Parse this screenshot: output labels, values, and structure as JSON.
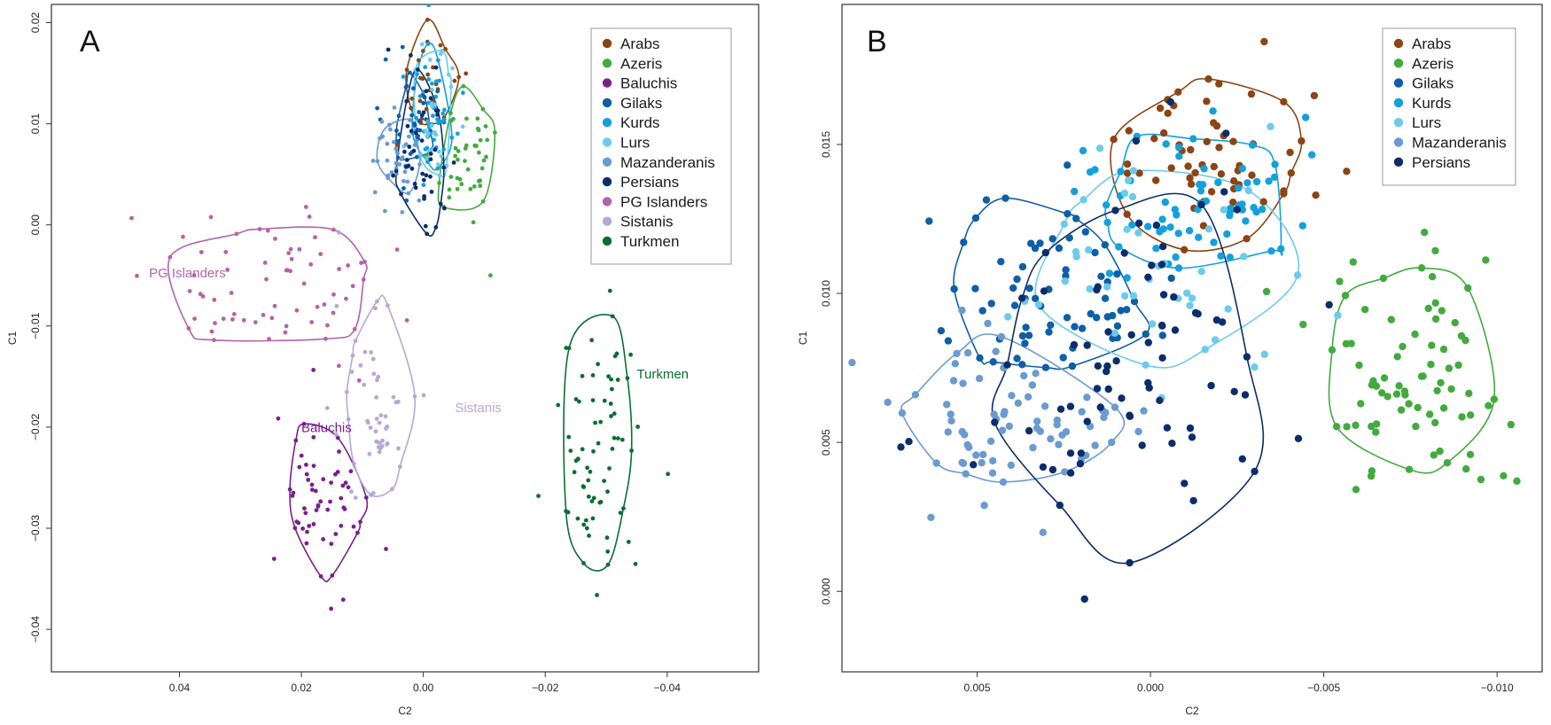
{
  "chart_data": [
    {
      "type": "scatter",
      "panel_label": "A",
      "xlabel": "C2",
      "ylabel": "C1",
      "xlim": [
        0.061,
        -0.055
      ],
      "ylim": [
        -0.0442,
        0.0218
      ],
      "x_ticks": [
        0.04,
        0.02,
        0.0,
        -0.02,
        -0.04
      ],
      "x_tick_labels": [
        "0.04",
        "0.02",
        "0.00",
        "−0.02",
        "−0.04"
      ],
      "y_ticks": [
        0.02,
        0.01,
        0.0,
        -0.01,
        -0.02,
        -0.03,
        -0.04
      ],
      "y_tick_labels": [
        "0.02",
        "0.01",
        "0.00",
        "−0.01",
        "−0.02",
        "−0.03",
        "−0.04"
      ],
      "legend_position": "top-right",
      "series": [
        {
          "name": "Arabs",
          "color": "#8b4513",
          "center": [
            -0.0015,
            0.0135
          ],
          "spread": [
            0.0025,
            0.0035
          ],
          "n": 28
        },
        {
          "name": "Azeris",
          "color": "#41ab3d",
          "center": [
            -0.0068,
            0.0072
          ],
          "spread": [
            0.0028,
            0.0035
          ],
          "n": 45
        },
        {
          "name": "Baluchis",
          "color": "#7b1f8c",
          "center": [
            0.0165,
            -0.0275
          ],
          "spread": [
            0.0038,
            0.0045
          ],
          "n": 60,
          "label": "Baluchis",
          "label_at": [
            0.02,
            -0.0205
          ]
        },
        {
          "name": "Gilaks",
          "color": "#0e5fa6",
          "center": [
            0.0015,
            0.0095
          ],
          "spread": [
            0.0022,
            0.0032
          ],
          "n": 35
        },
        {
          "name": "Kurds",
          "color": "#14a0db",
          "center": [
            -0.0015,
            0.0115
          ],
          "spread": [
            0.0022,
            0.0035
          ],
          "n": 45
        },
        {
          "name": "Lurs",
          "color": "#6ccbec",
          "center": [
            -0.0015,
            0.0105
          ],
          "spread": [
            0.002,
            0.004
          ],
          "n": 30
        },
        {
          "name": "Mazanderanis",
          "color": "#6a9bd0",
          "center": [
            0.0038,
            0.0068
          ],
          "spread": [
            0.0022,
            0.0022
          ],
          "n": 40
        },
        {
          "name": "Persians",
          "color": "#0c2d6b",
          "center": [
            0.0005,
            0.0065
          ],
          "spread": [
            0.0022,
            0.0045
          ],
          "n": 45
        },
        {
          "name": "PG Islanders",
          "color": "#b462aa",
          "center": [
            0.0255,
            -0.0065
          ],
          "spread": [
            0.0095,
            0.0038
          ],
          "n": 70,
          "label": "PG Islanders",
          "label_at": [
            0.045,
            -0.0052
          ]
        },
        {
          "name": "Sistanis",
          "color": "#b7a8d4",
          "center": [
            0.0075,
            -0.0175
          ],
          "spread": [
            0.0032,
            0.0055
          ],
          "n": 55,
          "label": "Sistanis",
          "label_at": [
            -0.0052,
            -0.0185
          ]
        },
        {
          "name": "Turkmen",
          "color": "#0a6e33",
          "center": [
            -0.0285,
            -0.0215
          ],
          "spread": [
            0.0032,
            0.0075
          ],
          "n": 75,
          "label": "Turkmen",
          "label_at": [
            -0.035,
            -0.0152
          ]
        }
      ]
    },
    {
      "type": "scatter",
      "panel_label": "B",
      "xlabel": "C2",
      "ylabel": "C1",
      "xlim": [
        0.0089,
        -0.0113
      ],
      "ylim": [
        -0.0027,
        0.0197
      ],
      "x_ticks": [
        0.005,
        0.0,
        -0.005,
        -0.01
      ],
      "x_tick_labels": [
        "0.005",
        "0.000",
        "−0.005",
        "−0.010"
      ],
      "y_ticks": [
        0.015,
        0.01,
        0.005,
        0.0
      ],
      "y_tick_labels": [
        "0.015",
        "0.010",
        "0.005",
        "0.000"
      ],
      "legend_position": "top-right",
      "series": [
        {
          "name": "Arabs",
          "color": "#8b4513",
          "center": [
            -0.0015,
            0.0145
          ],
          "spread": [
            0.0017,
            0.0017
          ],
          "n": 60
        },
        {
          "name": "Azeris",
          "color": "#41ab3d",
          "center": [
            -0.0075,
            0.0075
          ],
          "spread": [
            0.0014,
            0.0018
          ],
          "n": 80
        },
        {
          "name": "Gilaks",
          "color": "#0e5fa6",
          "center": [
            0.0028,
            0.0103
          ],
          "spread": [
            0.0017,
            0.0016
          ],
          "n": 70
        },
        {
          "name": "Kurds",
          "color": "#14a0db",
          "center": [
            -0.0015,
            0.0132
          ],
          "spread": [
            0.0015,
            0.0014
          ],
          "n": 70
        },
        {
          "name": "Lurs",
          "color": "#6ccbec",
          "center": [
            -0.0005,
            0.0112
          ],
          "spread": [
            0.0022,
            0.002
          ],
          "n": 45
        },
        {
          "name": "Mazanderanis",
          "color": "#6a9bd0",
          "center": [
            0.0042,
            0.0058
          ],
          "spread": [
            0.0017,
            0.0014
          ],
          "n": 75
        },
        {
          "name": "Persians",
          "color": "#0c2d6b",
          "center": [
            0.0005,
            0.0075
          ],
          "spread": [
            0.0022,
            0.0035
          ],
          "n": 80
        }
      ]
    }
  ]
}
